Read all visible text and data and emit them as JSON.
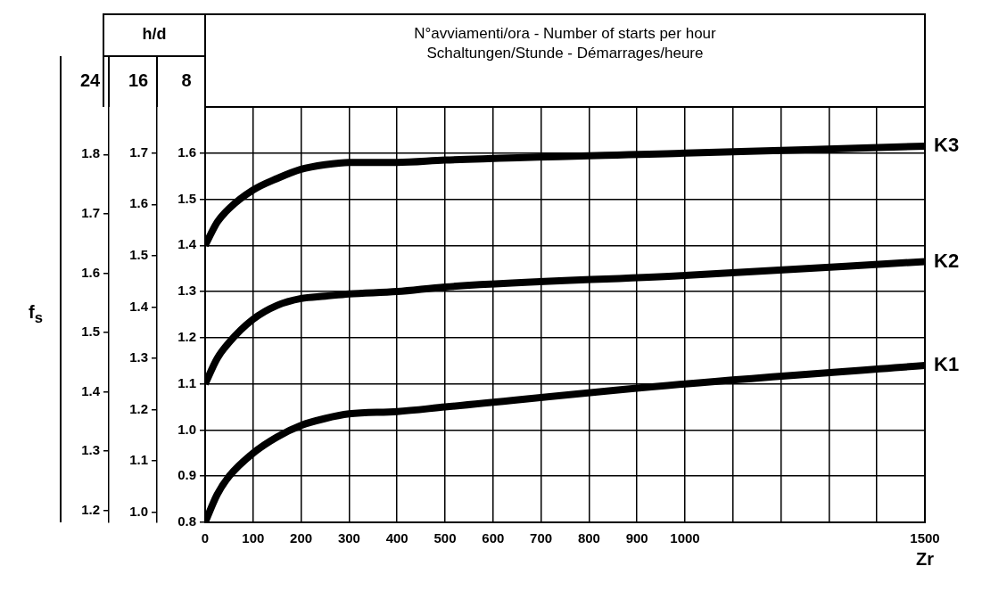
{
  "chart_data": {
    "type": "line",
    "title": "N°avviamenti/ora - Number of starts per hour",
    "subtitle": "Schaltungen/Stunde - Démarrages/heure",
    "xlabel": "Zr",
    "ylabel": "8",
    "y2label": "16",
    "y3label": "24",
    "annotations": [
      "h/d",
      "f$_{s}$"
    ],
    "x": [
      0,
      25,
      50,
      100,
      150,
      200,
      250,
      300,
      400,
      500,
      1000,
      1500
    ],
    "series": [
      {
        "name": "K3",
        "color": "#000000",
        "values": [
          1.4,
          1.45,
          1.48,
          1.52,
          1.545,
          1.565,
          1.575,
          1.58,
          1.58,
          1.585,
          1.6,
          1.615
        ]
      },
      {
        "name": "K2",
        "color": "#000000",
        "values": [
          1.1,
          1.155,
          1.19,
          1.24,
          1.27,
          1.285,
          1.29,
          1.295,
          1.3,
          1.31,
          1.335,
          1.365
        ]
      },
      {
        "name": "K1",
        "color": "#000000",
        "values": [
          0.8,
          0.86,
          0.9,
          0.95,
          0.985,
          1.01,
          1.025,
          1.035,
          1.04,
          1.05,
          1.1,
          1.14
        ]
      }
    ],
    "xlim": [
      0,
      1500
    ],
    "xticks": [
      0,
      100,
      200,
      300,
      400,
      500,
      600,
      700,
      800,
      900,
      1000,
      {
        "value": 1100,
        "label": null
      },
      {
        "value": 1200,
        "label": null
      },
      {
        "value": 1300,
        "label": null
      },
      {
        "value": 1400,
        "label": null
      },
      1500
    ],
    "ylim": [
      0.8,
      1.7
    ],
    "yticks": [
      0.8,
      0.9,
      {
        "value": 1,
        "label": "1.0"
      },
      1.1,
      1.2,
      1.3,
      1.4,
      1.5,
      1.6
    ],
    "y2lim": [
      0.98,
      1.79
    ],
    "y2ticks": [
      {
        "value": 1,
        "label": "1.0"
      },
      1.1,
      1.2,
      1.3,
      1.4,
      1.5,
      1.6,
      1.7
    ],
    "y3lim": [
      1.18,
      1.88
    ],
    "y3ticks": [
      1.2,
      1.3,
      1.4,
      1.5,
      1.6,
      1.7,
      1.8
    ],
    "grid": true,
    "legend": false,
    "marker": "none",
    "line_style": "solid"
  }
}
